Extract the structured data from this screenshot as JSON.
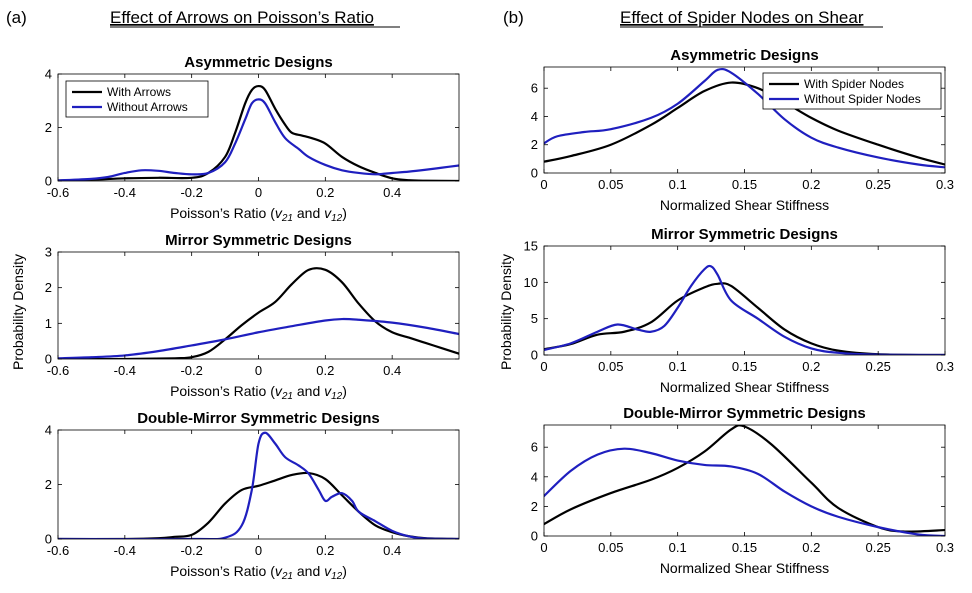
{
  "panels": {
    "a": {
      "letter": "(a)",
      "heading": "Effect of Arrows on Poisson’s Ratio"
    },
    "b": {
      "letter": "(b)",
      "heading": "Effect of Spider Nodes on Shear"
    }
  },
  "colors": {
    "black_series": "#000000",
    "blue_series": "#1f1fbf"
  },
  "ylabel": "Probability Density",
  "chart_data": [
    {
      "id": "a1",
      "type": "line",
      "title": "Asymmetric Designs",
      "xlabel_parts": [
        "Poisson’s Ratio (",
        "v",
        "21",
        " and ",
        "v",
        "12",
        ")"
      ],
      "xlim": [
        -0.6,
        0.6
      ],
      "ylim": [
        0,
        4
      ],
      "xticks": [
        -0.6,
        -0.4,
        -0.2,
        0,
        0.2,
        0.4
      ],
      "xticklabels": [
        "-0.6",
        "-0.4",
        "-0.2",
        "0",
        "0.2",
        "0.4"
      ],
      "yticks": [
        0,
        2,
        4
      ],
      "yticklabels": [
        "0",
        "2",
        "4"
      ],
      "legend": [
        "With Arrows",
        "Without Arrows"
      ],
      "legend_loc": "top-left",
      "series": [
        {
          "name": "With Arrows",
          "color": "#000000",
          "x": [
            -0.6,
            -0.5,
            -0.4,
            -0.3,
            -0.2,
            -0.15,
            -0.1,
            -0.07,
            -0.04,
            -0.02,
            0.0,
            0.02,
            0.05,
            0.08,
            0.1,
            0.13,
            0.16,
            0.2,
            0.25,
            0.3,
            0.35,
            0.4,
            0.45,
            0.5,
            0.6
          ],
          "y": [
            0.02,
            0.05,
            0.1,
            0.12,
            0.12,
            0.3,
            0.9,
            1.8,
            2.9,
            3.4,
            3.55,
            3.4,
            2.7,
            2.1,
            1.8,
            1.7,
            1.6,
            1.4,
            0.9,
            0.55,
            0.3,
            0.1,
            0.03,
            0.01,
            0.0
          ]
        },
        {
          "name": "Without Arrows",
          "color": "#1f1fbf",
          "x": [
            -0.6,
            -0.5,
            -0.45,
            -0.4,
            -0.35,
            -0.3,
            -0.25,
            -0.2,
            -0.15,
            -0.1,
            -0.07,
            -0.04,
            -0.02,
            0.0,
            0.02,
            0.05,
            0.08,
            0.12,
            0.15,
            0.2,
            0.25,
            0.3,
            0.35,
            0.4,
            0.45,
            0.5,
            0.55,
            0.6
          ],
          "y": [
            0.02,
            0.08,
            0.15,
            0.3,
            0.4,
            0.38,
            0.3,
            0.25,
            0.3,
            0.7,
            1.4,
            2.3,
            2.9,
            3.05,
            2.9,
            2.2,
            1.6,
            1.2,
            0.9,
            0.6,
            0.4,
            0.3,
            0.25,
            0.3,
            0.35,
            0.42,
            0.5,
            0.58
          ]
        }
      ]
    },
    {
      "id": "a2",
      "type": "line",
      "title": "Mirror Symmetric Designs",
      "xlabel_parts": [
        "Poisson’s Ratio (",
        "v",
        "21",
        " and ",
        "v",
        "12",
        ")"
      ],
      "xlim": [
        -0.6,
        0.6
      ],
      "ylim": [
        0,
        3
      ],
      "xticks": [
        -0.6,
        -0.4,
        -0.2,
        0,
        0.2,
        0.4
      ],
      "xticklabels": [
        "-0.6",
        "-0.4",
        "-0.2",
        "0",
        "0.2",
        "0.4"
      ],
      "yticks": [
        0,
        1,
        2,
        3
      ],
      "yticklabels": [
        "0",
        "1",
        "2",
        "3"
      ],
      "series": [
        {
          "name": "With Arrows",
          "color": "#000000",
          "x": [
            -0.6,
            -0.4,
            -0.25,
            -0.2,
            -0.15,
            -0.1,
            -0.05,
            0.0,
            0.05,
            0.1,
            0.15,
            0.2,
            0.25,
            0.3,
            0.35,
            0.4,
            0.45,
            0.5,
            0.55,
            0.6
          ],
          "y": [
            0,
            0,
            0.02,
            0.05,
            0.2,
            0.55,
            0.95,
            1.3,
            1.6,
            2.1,
            2.5,
            2.5,
            2.15,
            1.55,
            1.05,
            0.75,
            0.6,
            0.45,
            0.3,
            0.15
          ]
        },
        {
          "name": "Without Arrows",
          "color": "#1f1fbf",
          "x": [
            -0.6,
            -0.5,
            -0.4,
            -0.3,
            -0.2,
            -0.1,
            0.0,
            0.1,
            0.2,
            0.25,
            0.3,
            0.4,
            0.5,
            0.6
          ],
          "y": [
            0.02,
            0.05,
            0.1,
            0.22,
            0.38,
            0.55,
            0.75,
            0.92,
            1.08,
            1.12,
            1.1,
            1.02,
            0.88,
            0.7
          ]
        }
      ]
    },
    {
      "id": "a3",
      "type": "line",
      "title": "Double-Mirror Symmetric Designs",
      "xlabel_parts": [
        "Poisson’s Ratio (",
        "v",
        "21",
        " and ",
        "v",
        "12",
        ")"
      ],
      "xlim": [
        -0.6,
        0.6
      ],
      "ylim": [
        0,
        4
      ],
      "xticks": [
        -0.6,
        -0.4,
        -0.2,
        0,
        0.2,
        0.4
      ],
      "xticklabels": [
        "-0.6",
        "-0.4",
        "-0.2",
        "0",
        "0.2",
        "0.4"
      ],
      "yticks": [
        0,
        2,
        4
      ],
      "yticklabels": [
        "0",
        "2",
        "4"
      ],
      "series": [
        {
          "name": "With Arrows",
          "color": "#000000",
          "x": [
            -0.6,
            -0.4,
            -0.3,
            -0.25,
            -0.2,
            -0.15,
            -0.1,
            -0.05,
            0.0,
            0.05,
            0.1,
            0.15,
            0.2,
            0.25,
            0.3,
            0.35,
            0.4,
            0.45,
            0.5,
            0.6
          ],
          "y": [
            0,
            0,
            0.03,
            0.08,
            0.15,
            0.6,
            1.3,
            1.8,
            1.95,
            2.15,
            2.35,
            2.42,
            2.2,
            1.6,
            1.0,
            0.5,
            0.25,
            0.1,
            0.03,
            0
          ]
        },
        {
          "name": "Without Arrows",
          "color": "#1f1fbf",
          "x": [
            -0.6,
            -0.2,
            -0.1,
            -0.05,
            -0.02,
            0.0,
            0.02,
            0.05,
            0.08,
            0.12,
            0.15,
            0.18,
            0.2,
            0.22,
            0.25,
            0.28,
            0.3,
            0.35,
            0.4,
            0.45,
            0.5,
            0.6
          ],
          "y": [
            0,
            0,
            0.05,
            0.5,
            1.8,
            3.5,
            3.9,
            3.5,
            3.0,
            2.7,
            2.4,
            1.8,
            1.4,
            1.55,
            1.68,
            1.4,
            1.0,
            0.65,
            0.3,
            0.1,
            0.02,
            0
          ]
        }
      ]
    },
    {
      "id": "b1",
      "type": "line",
      "title": "Asymmetric Designs",
      "xlabel": "Normalized Shear Stiffness",
      "xlim": [
        0,
        0.3
      ],
      "ylim": [
        0,
        7.5
      ],
      "xticks": [
        0,
        0.05,
        0.1,
        0.15,
        0.2,
        0.25,
        0.3
      ],
      "xticklabels": [
        "0",
        "0.05",
        "0.1",
        "0.15",
        "0.2",
        "0.25",
        "0.3"
      ],
      "yticks": [
        0,
        2,
        4,
        6
      ],
      "yticklabels": [
        "0",
        "2",
        "4",
        "6"
      ],
      "legend": [
        "With Spider Nodes",
        "Without Spider Nodes"
      ],
      "legend_loc": "top-right",
      "series": [
        {
          "name": "With Spider Nodes",
          "color": "#000000",
          "x": [
            0,
            0.02,
            0.05,
            0.08,
            0.1,
            0.12,
            0.14,
            0.16,
            0.18,
            0.2,
            0.22,
            0.25,
            0.28,
            0.3
          ],
          "y": [
            0.8,
            1.2,
            2.0,
            3.4,
            4.6,
            5.8,
            6.4,
            6.0,
            5.0,
            3.9,
            3.0,
            2.0,
            1.1,
            0.6
          ]
        },
        {
          "name": "Without Spider Nodes",
          "color": "#1f1fbf",
          "x": [
            0,
            0.01,
            0.03,
            0.05,
            0.08,
            0.1,
            0.12,
            0.13,
            0.14,
            0.16,
            0.18,
            0.2,
            0.22,
            0.25,
            0.28,
            0.3
          ],
          "y": [
            2.1,
            2.6,
            2.9,
            3.1,
            3.9,
            4.9,
            6.5,
            7.3,
            7.1,
            5.6,
            3.8,
            2.5,
            1.8,
            1.1,
            0.6,
            0.4
          ]
        }
      ]
    },
    {
      "id": "b2",
      "type": "line",
      "title": "Mirror Symmetric Designs",
      "xlabel": "Normalized Shear Stiffness",
      "xlim": [
        0,
        0.3
      ],
      "ylim": [
        0,
        15
      ],
      "xticks": [
        0,
        0.05,
        0.1,
        0.15,
        0.2,
        0.25,
        0.3
      ],
      "xticklabels": [
        "0",
        "0.05",
        "0.1",
        "0.15",
        "0.2",
        "0.25",
        "0.3"
      ],
      "yticks": [
        0,
        5,
        10,
        15
      ],
      "yticklabels": [
        "0",
        "5",
        "10",
        "15"
      ],
      "series": [
        {
          "name": "With Spider Nodes",
          "color": "#000000",
          "x": [
            0,
            0.02,
            0.04,
            0.06,
            0.08,
            0.1,
            0.12,
            0.13,
            0.14,
            0.16,
            0.18,
            0.2,
            0.22,
            0.25,
            0.3
          ],
          "y": [
            0.8,
            1.5,
            2.8,
            3.2,
            4.5,
            7.5,
            9.3,
            9.8,
            9.5,
            6.5,
            3.5,
            1.6,
            0.6,
            0.1,
            0
          ]
        },
        {
          "name": "Without Spider Nodes",
          "color": "#1f1fbf",
          "x": [
            0,
            0.02,
            0.04,
            0.055,
            0.07,
            0.08,
            0.09,
            0.1,
            0.11,
            0.12,
            0.125,
            0.13,
            0.14,
            0.16,
            0.18,
            0.2,
            0.22,
            0.25,
            0.3
          ],
          "y": [
            0.7,
            1.6,
            3.2,
            4.2,
            3.5,
            3.2,
            4.0,
            6.5,
            9.5,
            11.8,
            12.2,
            11.0,
            7.5,
            5.0,
            2.5,
            0.9,
            0.3,
            0.05,
            0
          ]
        }
      ]
    },
    {
      "id": "b3",
      "type": "line",
      "title": "Double-Mirror Symmetric Designs",
      "xlabel": "Normalized Shear Stiffness",
      "xlim": [
        0,
        0.3
      ],
      "ylim": [
        0,
        7.5
      ],
      "xticks": [
        0,
        0.05,
        0.1,
        0.15,
        0.2,
        0.25,
        0.3
      ],
      "xticklabels": [
        "0",
        "0.05",
        "0.1",
        "0.15",
        "0.2",
        "0.25",
        "0.3"
      ],
      "yticks": [
        0,
        2,
        4,
        6
      ],
      "yticklabels": [
        "0",
        "2",
        "4",
        "6"
      ],
      "series": [
        {
          "name": "With Spider Nodes",
          "color": "#000000",
          "x": [
            0,
            0.02,
            0.05,
            0.08,
            0.1,
            0.12,
            0.14,
            0.15,
            0.17,
            0.2,
            0.22,
            0.25,
            0.27,
            0.3
          ],
          "y": [
            0.8,
            1.8,
            2.9,
            3.8,
            4.6,
            5.7,
            7.2,
            7.4,
            6.2,
            3.6,
            1.9,
            0.6,
            0.3,
            0.4
          ]
        },
        {
          "name": "Without Spider Nodes",
          "color": "#1f1fbf",
          "x": [
            0,
            0.02,
            0.04,
            0.06,
            0.08,
            0.1,
            0.12,
            0.14,
            0.16,
            0.18,
            0.2,
            0.22,
            0.25,
            0.28,
            0.3
          ],
          "y": [
            2.7,
            4.4,
            5.5,
            5.9,
            5.6,
            5.1,
            4.8,
            4.7,
            4.2,
            3.0,
            2.0,
            1.3,
            0.6,
            0.1,
            0.0
          ]
        }
      ]
    }
  ]
}
